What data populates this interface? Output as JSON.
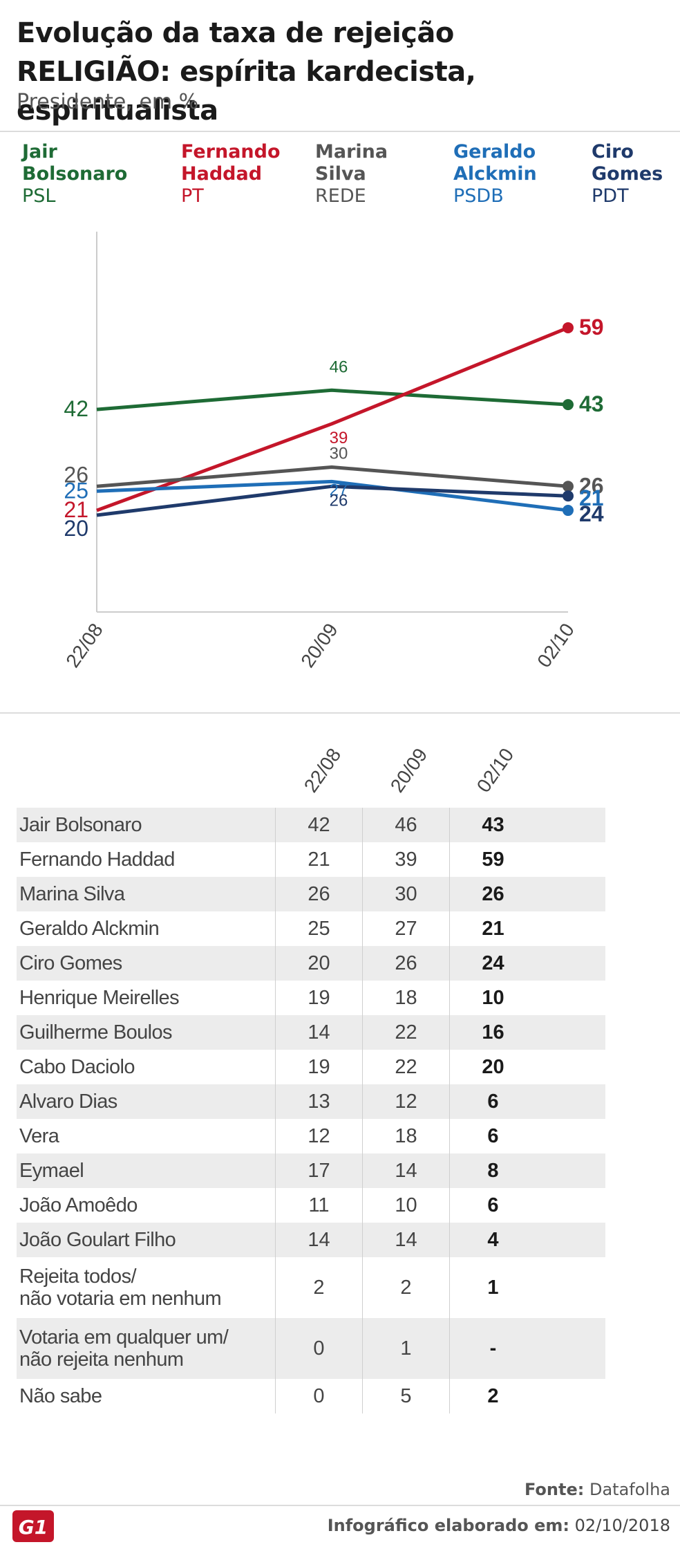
{
  "header": {
    "title_line1": "Evolução da taxa de rejeição",
    "title_line2_bold": "RELIGIÃO:",
    "title_line2_rest": " espírita kardecista, espiritualista",
    "subtitle": "Presidente, em %"
  },
  "candidates": [
    {
      "name": "Jair\nBolsonaro",
      "party": "PSL",
      "color": "#1e6b35"
    },
    {
      "name": "Fernando\nHaddad",
      "party": "PT",
      "color": "#c4162a"
    },
    {
      "name": "Marina\nSilva",
      "party": "REDE",
      "color": "#555555"
    },
    {
      "name": "Geraldo\nAlckmin",
      "party": "PSDB",
      "color": "#1f6eb7"
    },
    {
      "name": "Ciro\nGomes",
      "party": "PDT",
      "color": "#1f3a6b"
    }
  ],
  "chart_data": {
    "type": "line",
    "x": [
      "22/08",
      "20/09",
      "02/10"
    ],
    "ylim": [
      0,
      65
    ],
    "series": [
      {
        "name": "Jair Bolsonaro",
        "values": [
          42,
          46,
          43
        ],
        "color": "#1e6b35"
      },
      {
        "name": "Fernando Haddad",
        "values": [
          21,
          39,
          59
        ],
        "color": "#c4162a"
      },
      {
        "name": "Marina Silva",
        "values": [
          26,
          30,
          26
        ],
        "color": "#555555"
      },
      {
        "name": "Geraldo Alckmin",
        "values": [
          25,
          27,
          21
        ],
        "color": "#1f6eb7"
      },
      {
        "name": "Ciro Gomes",
        "values": [
          20,
          26,
          24
        ],
        "color": "#1f3a6b"
      }
    ]
  },
  "table": {
    "columns": [
      "22/08",
      "20/09",
      "02/10"
    ],
    "rows": [
      {
        "name": "Jair Bolsonaro",
        "v": [
          "42",
          "46",
          "43"
        ]
      },
      {
        "name": "Fernando Haddad",
        "v": [
          "21",
          "39",
          "59"
        ]
      },
      {
        "name": "Marina Silva",
        "v": [
          "26",
          "30",
          "26"
        ]
      },
      {
        "name": "Geraldo Alckmin",
        "v": [
          "25",
          "27",
          "21"
        ]
      },
      {
        "name": "Ciro Gomes",
        "v": [
          "20",
          "26",
          "24"
        ]
      },
      {
        "name": "Henrique Meirelles",
        "v": [
          "19",
          "18",
          "10"
        ]
      },
      {
        "name": "Guilherme Boulos",
        "v": [
          "14",
          "22",
          "16"
        ]
      },
      {
        "name": "Cabo Daciolo",
        "v": [
          "19",
          "22",
          "20"
        ]
      },
      {
        "name": "Alvaro Dias",
        "v": [
          "13",
          "12",
          "6"
        ]
      },
      {
        "name": "Vera",
        "v": [
          "12",
          "18",
          "6"
        ]
      },
      {
        "name": "Eymael",
        "v": [
          "17",
          "14",
          "8"
        ]
      },
      {
        "name": "João Amoêdo",
        "v": [
          "11",
          "10",
          "6"
        ]
      },
      {
        "name": "João Goulart Filho",
        "v": [
          "14",
          "14",
          "4"
        ]
      },
      {
        "name": "Rejeita todos/\nnão votaria em nenhum",
        "v": [
          "2",
          "2",
          "1"
        ]
      },
      {
        "name": "Votaria em qualquer um/\nnão rejeita nenhum",
        "v": [
          "0",
          "1",
          "-"
        ]
      },
      {
        "name": "Não sabe",
        "v": [
          "0",
          "5",
          "2"
        ]
      }
    ]
  },
  "footer": {
    "source_label": "Fonte:",
    "source_value": " Datafolha",
    "credit_label": "Infográfico elaborado em:",
    "credit_value": " 02/10/2018",
    "logo_text": "G1"
  }
}
